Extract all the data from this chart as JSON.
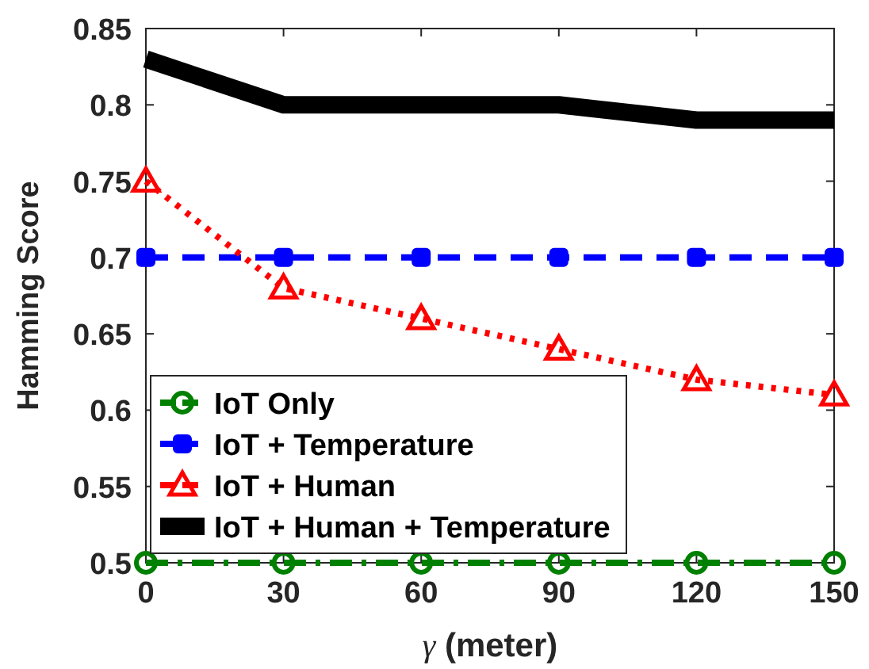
{
  "chart_data": {
    "type": "line",
    "xlabel": "γ (meter)",
    "ylabel": "Hamming Score",
    "x": [
      0,
      30,
      60,
      90,
      120,
      150
    ],
    "xlim": [
      0,
      150
    ],
    "xticks": [
      0,
      30,
      60,
      90,
      120,
      {
        "value": 150,
        "label": "150"
      }
    ],
    "ylim": [
      0.5,
      0.85
    ],
    "yticks": [
      {
        "value": 0.5,
        "label": "0.5"
      },
      {
        "value": 0.55,
        "label": "0.55"
      },
      {
        "value": 0.6,
        "label": "0.6"
      },
      {
        "value": 0.65,
        "label": "0.65"
      },
      {
        "value": 0.7,
        "label": "0.7"
      },
      {
        "value": 0.75,
        "label": "0.75"
      },
      {
        "value": 0.8,
        "label": "0.8"
      },
      {
        "value": 0.85,
        "label": "0.85"
      }
    ],
    "grid": false,
    "legend": "bottom left",
    "series": [
      {
        "name": "IoT Only",
        "color": "#008000",
        "values": [
          0.5,
          0.5,
          0.5,
          0.5,
          0.5,
          0.5
        ],
        "marker": "circle",
        "line_style": "dashdot"
      },
      {
        "name": "IoT + Temperature",
        "color": "#0000ff",
        "values": [
          0.7,
          0.7,
          0.7,
          0.7,
          0.7,
          0.7
        ],
        "marker": "square",
        "line_style": "dashed"
      },
      {
        "name": "IoT + Human",
        "color": "#ff0000",
        "values": [
          0.75,
          0.68,
          0.66,
          0.64,
          0.62,
          0.61
        ],
        "marker": "triangle",
        "line_style": "dotted"
      },
      {
        "name": "IoT + Human + Temperature",
        "color": "#000000",
        "values": [
          0.83,
          0.8,
          0.8,
          0.8,
          0.79,
          0.79
        ],
        "marker": "none",
        "line_style": "solid"
      }
    ]
  }
}
